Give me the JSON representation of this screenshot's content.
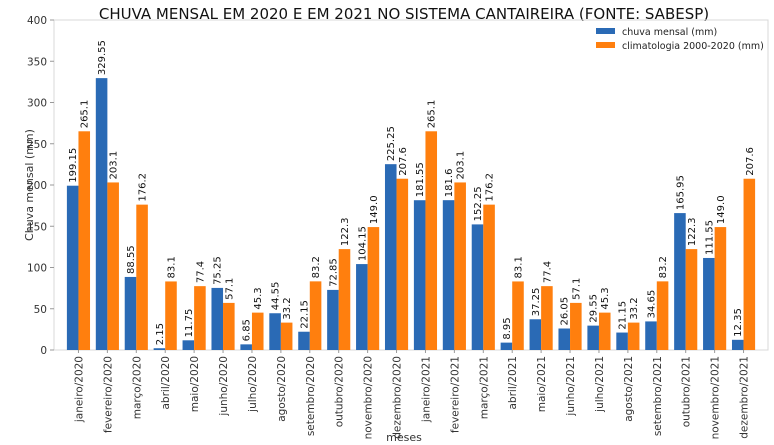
{
  "chart_data": {
    "type": "bar",
    "title": "CHUVA MENSAL EM 2020 E EM 2021 NO SISTEMA CANTAIREIRA (FONTE: SABESP)",
    "xlabel": "meses",
    "ylabel": "Chuva mensal (mm)",
    "ylim": [
      0,
      400
    ],
    "yticks": [
      0,
      50,
      100,
      150,
      200,
      250,
      300,
      350,
      400
    ],
    "grid": false,
    "legend_position": "top-right",
    "categories": [
      "janeiro/2020",
      "fevereiro/2020",
      "março/2020",
      "abril/2020",
      "maio/2020",
      "junho/2020",
      "julho/2020",
      "agosto/2020",
      "setembro/2020",
      "outubro/2020",
      "novembro/2020",
      "dezembro/2020",
      "janeiro/2021",
      "fevereiro/2021",
      "março/2021",
      "abril/2021",
      "maio/2021",
      "junho/2021",
      "julho/2021",
      "agosto/2021",
      "setembro/2021",
      "outubro/2021",
      "novembro/2021",
      "dezembro/2021"
    ],
    "series": [
      {
        "name": "chuva mensal (mm)",
        "color": "#2a6ab5",
        "values": [
          199.15,
          329.55,
          88.55,
          2.15,
          11.75,
          75.25,
          6.85,
          44.55,
          22.15,
          72.85,
          104.15,
          225.25,
          181.55,
          181.6,
          152.25,
          8.95,
          37.25,
          26.05,
          29.55,
          21.15,
          34.65,
          165.95,
          111.55,
          12.35
        ],
        "labels": [
          "199.15",
          "329.55",
          "88.55",
          "2.15",
          "11.75",
          "75.25",
          "6.85",
          "44.55",
          "22.15",
          "72.85",
          "104.15",
          "225.25",
          "181.55",
          "181.6",
          "152.25",
          "8.95",
          "37.25",
          "26.05",
          "29.55",
          "21.15",
          "34.65",
          "165.95",
          "111.55",
          "12.35"
        ]
      },
      {
        "name": "climatologia 2000-2020 (mm)",
        "color": "#ff7f0e",
        "values": [
          265.1,
          203.1,
          176.2,
          83.1,
          77.4,
          57.1,
          45.3,
          33.2,
          83.2,
          122.3,
          149.0,
          207.6,
          265.1,
          203.1,
          176.2,
          83.1,
          77.4,
          57.1,
          45.3,
          33.2,
          83.2,
          122.3,
          149.0,
          207.6
        ],
        "labels": [
          "265.1",
          "203.1",
          "176.2",
          "83.1",
          "77.4",
          "57.1",
          "45.3",
          "33.2",
          "83.2",
          "122.3",
          "149.0",
          "207.6",
          "265.1",
          "203.1",
          "176.2",
          "83.1",
          "77.4",
          "57.1",
          "45.3",
          "33.2",
          "83.2",
          "122.3",
          "149.0",
          "207.6"
        ]
      }
    ]
  }
}
